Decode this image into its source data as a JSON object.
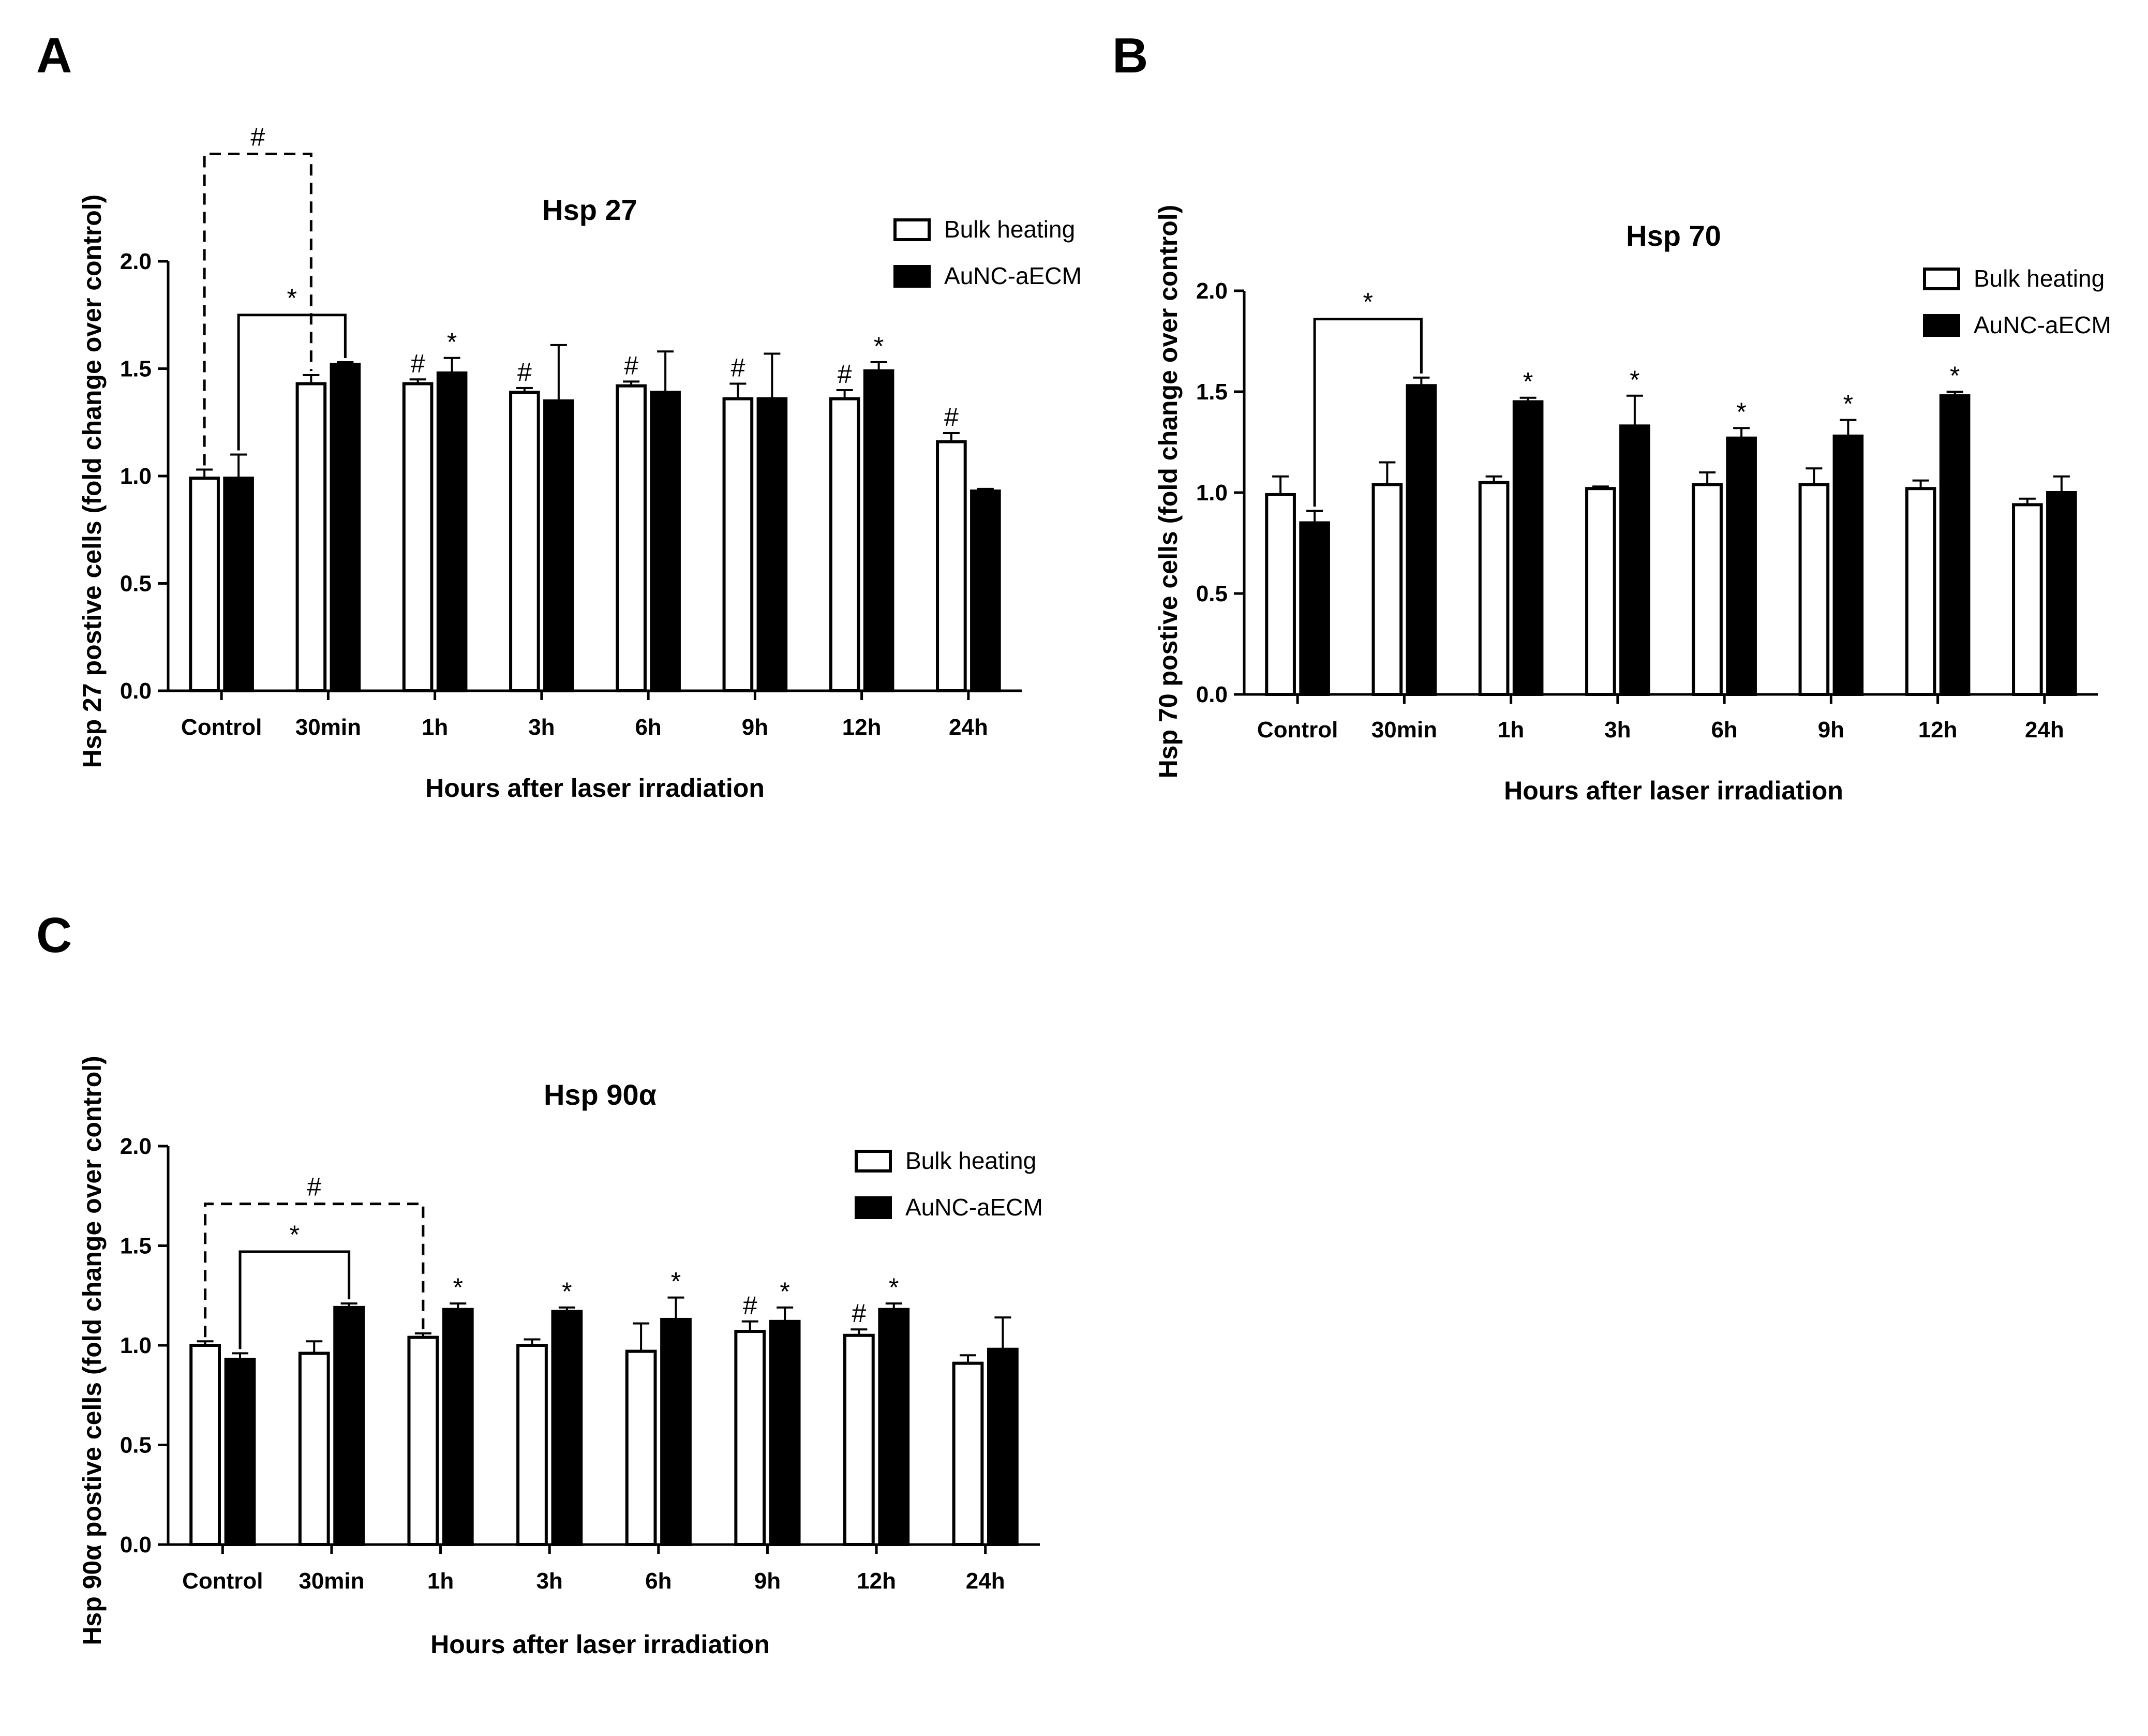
{
  "chart_data": [
    {
      "panel": "A",
      "type": "bar",
      "title": "Hsp 27",
      "xlabel": "Hours after laser irradiation",
      "ylabel": "Hsp 27 postive cells (fold change over control)",
      "ylim": [
        0,
        2.0
      ],
      "yticks": [
        "0.0",
        "0.5",
        "1.0",
        "1.5",
        "2.0"
      ],
      "categories": [
        "Control",
        "30min",
        "1h",
        "3h",
        "6h",
        "9h",
        "12h",
        "24h"
      ],
      "legend_position": "top-right",
      "series": [
        {
          "name": "Bulk heating",
          "fill": "#ffffff",
          "values": [
            0.99,
            1.43,
            1.43,
            1.39,
            1.42,
            1.36,
            1.36,
            1.16
          ],
          "errors": [
            0.04,
            0.04,
            0.02,
            0.02,
            0.02,
            0.07,
            0.04,
            0.04
          ],
          "marks": [
            "",
            "",
            "#",
            "#",
            "#",
            "#",
            "#",
            "#"
          ]
        },
        {
          "name": "AuNC-aECM",
          "fill": "#000000",
          "values": [
            0.99,
            1.52,
            1.48,
            1.35,
            1.39,
            1.36,
            1.49,
            0.93
          ],
          "errors": [
            0.11,
            0.01,
            0.07,
            0.26,
            0.19,
            0.21,
            0.04,
            0.01
          ],
          "marks": [
            "",
            "",
            "*",
            "",
            "",
            "",
            "*",
            ""
          ]
        }
      ],
      "brackets": [
        {
          "from": [
            0,
            0
          ],
          "to": [
            1,
            0
          ],
          "label": "#",
          "style": "dashed",
          "level": 2.5
        },
        {
          "from": [
            0,
            1
          ],
          "to": [
            1,
            1
          ],
          "label": "*",
          "style": "solid",
          "level": 1.75
        }
      ]
    },
    {
      "panel": "B",
      "type": "bar",
      "title": "Hsp 70",
      "xlabel": "Hours after laser irradiation",
      "ylabel": "Hsp 70 postive cells (fold change over control)",
      "ylim": [
        0,
        2.0
      ],
      "yticks": [
        "0.0",
        "0.5",
        "1.0",
        "1.5",
        "2.0"
      ],
      "categories": [
        "Control",
        "30min",
        "1h",
        "3h",
        "6h",
        "9h",
        "12h",
        "24h"
      ],
      "legend_position": "top-right",
      "series": [
        {
          "name": "Bulk heating",
          "fill": "#ffffff",
          "values": [
            0.99,
            1.04,
            1.05,
            1.02,
            1.04,
            1.04,
            1.02,
            0.94
          ],
          "errors": [
            0.09,
            0.11,
            0.03,
            0.01,
            0.06,
            0.08,
            0.04,
            0.03
          ],
          "marks": [
            "",
            "",
            "",
            "",
            "",
            "",
            "",
            ""
          ]
        },
        {
          "name": "AuNC-aECM",
          "fill": "#000000",
          "values": [
            0.85,
            1.53,
            1.45,
            1.33,
            1.27,
            1.28,
            1.48,
            1.0
          ],
          "errors": [
            0.06,
            0.04,
            0.02,
            0.15,
            0.05,
            0.08,
            0.02,
            0.08
          ],
          "marks": [
            "",
            "",
            "*",
            "*",
            "*",
            "*",
            "*",
            ""
          ]
        }
      ],
      "brackets": [
        {
          "from": [
            0,
            1
          ],
          "to": [
            1,
            1
          ],
          "label": "*",
          "style": "solid",
          "level": 1.86
        }
      ]
    },
    {
      "panel": "C",
      "type": "bar",
      "title": "Hsp 90α",
      "xlabel": "Hours after laser irradiation",
      "ylabel": "Hsp 90α postive cells (fold change over control)",
      "ylim": [
        0,
        2.0
      ],
      "yticks": [
        "0.0",
        "0.5",
        "1.0",
        "1.5",
        "2.0"
      ],
      "categories": [
        "Control",
        "30min",
        "1h",
        "3h",
        "6h",
        "9h",
        "12h",
        "24h"
      ],
      "legend_position": "top-right",
      "series": [
        {
          "name": "Bulk heating",
          "fill": "#ffffff",
          "values": [
            1.0,
            0.96,
            1.04,
            1.0,
            0.97,
            1.07,
            1.05,
            0.91
          ],
          "errors": [
            0.02,
            0.06,
            0.02,
            0.03,
            0.14,
            0.05,
            0.03,
            0.04
          ],
          "marks": [
            "",
            "",
            "",
            "",
            "",
            "#",
            "#",
            ""
          ]
        },
        {
          "name": "AuNC-aECM",
          "fill": "#000000",
          "values": [
            0.93,
            1.19,
            1.18,
            1.17,
            1.13,
            1.12,
            1.18,
            0.98
          ],
          "errors": [
            0.03,
            0.02,
            0.03,
            0.02,
            0.11,
            0.07,
            0.03,
            0.16
          ],
          "marks": [
            "",
            "",
            "*",
            "*",
            "*",
            "*",
            "*",
            ""
          ]
        }
      ],
      "brackets": [
        {
          "from": [
            0,
            0
          ],
          "to": [
            2,
            0
          ],
          "label": "#",
          "style": "dashed",
          "level": 1.71
        },
        {
          "from": [
            0,
            1
          ],
          "to": [
            1,
            1
          ],
          "label": "*",
          "style": "solid",
          "level": 1.47
        }
      ]
    }
  ]
}
